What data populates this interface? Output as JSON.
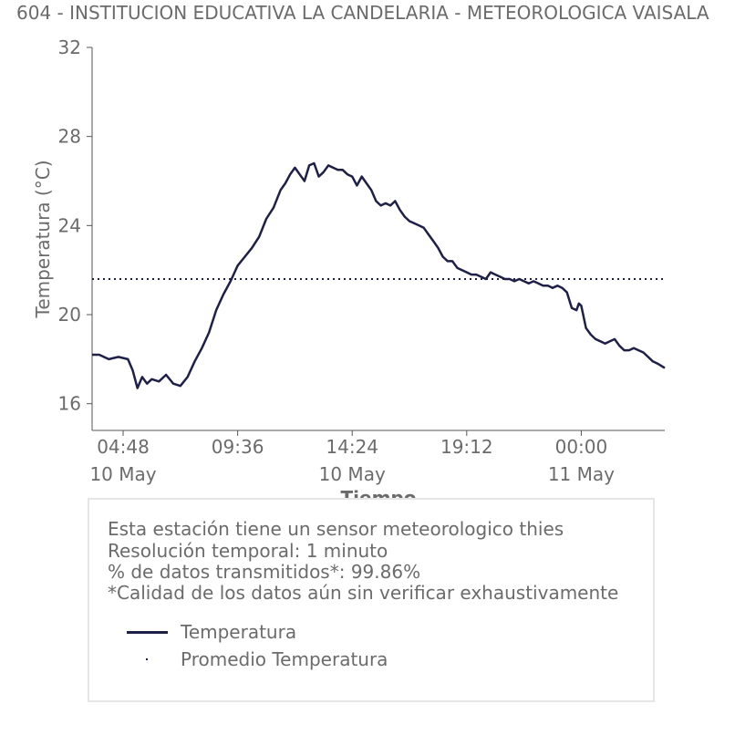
{
  "title": "604 - INSTITUCION EDUCATIVA LA CANDELARIA - METEOROLOGICA VAISALA",
  "info": {
    "line1": "Esta estación tiene un sensor meteorologico thies",
    "line2": "Resolución temporal: 1 minuto",
    "line3": "% de datos transmitidos*: 99.86%",
    "line4": "*Calidad de los datos aún sin verificar exhaustivamente"
  },
  "legend": {
    "series": "Temperatura",
    "mean": "Promedio Temperatura"
  },
  "colors": {
    "line": "#1f2045",
    "text": "#6b6b6b",
    "axis": "#555555"
  },
  "chart_data": {
    "type": "line",
    "title": "604 - INSTITUCION EDUCATIVA LA CANDELARIA - METEOROLOGICA VAISALA",
    "xlabel": "Tiempo",
    "ylabel": "Temperatura (°C)",
    "x_unit": "hours from 10 May 00:00",
    "xlim": [
      3.5,
      27.5
    ],
    "ylim": [
      14.8,
      32
    ],
    "yticks": [
      16,
      20,
      24,
      28,
      32
    ],
    "xticks": [
      {
        "value": 4.8,
        "time": "04:48",
        "date": "10 May"
      },
      {
        "value": 9.6,
        "time": "09:36",
        "date": ""
      },
      {
        "value": 14.4,
        "time": "14:24",
        "date": "10 May"
      },
      {
        "value": 19.2,
        "time": "19:12",
        "date": ""
      },
      {
        "value": 24.0,
        "time": "00:00",
        "date": "11 May"
      }
    ],
    "mean": 21.6,
    "grid": false,
    "series": [
      {
        "name": "Temperatura",
        "x": [
          3.5,
          3.8,
          4.2,
          4.6,
          5.0,
          5.2,
          5.4,
          5.6,
          5.8,
          6.0,
          6.3,
          6.6,
          6.9,
          7.2,
          7.5,
          7.8,
          8.1,
          8.4,
          8.7,
          9.0,
          9.3,
          9.6,
          9.9,
          10.2,
          10.5,
          10.8,
          11.1,
          11.4,
          11.6,
          11.8,
          12.0,
          12.2,
          12.4,
          12.6,
          12.8,
          13.0,
          13.2,
          13.4,
          13.6,
          13.8,
          14.0,
          14.2,
          14.4,
          14.6,
          14.8,
          15.0,
          15.2,
          15.4,
          15.6,
          15.8,
          16.0,
          16.2,
          16.4,
          16.6,
          16.8,
          17.0,
          17.2,
          17.4,
          17.6,
          17.8,
          18.0,
          18.2,
          18.4,
          18.6,
          18.8,
          19.0,
          19.2,
          19.4,
          19.6,
          19.8,
          20.0,
          20.2,
          20.4,
          20.6,
          20.8,
          21.0,
          21.2,
          21.4,
          21.6,
          21.8,
          22.0,
          22.2,
          22.4,
          22.6,
          22.8,
          23.0,
          23.2,
          23.4,
          23.6,
          23.8,
          23.9,
          24.0,
          24.2,
          24.4,
          24.6,
          24.8,
          25.0,
          25.2,
          25.4,
          25.6,
          25.8,
          26.0,
          26.2,
          26.4,
          26.6,
          26.8,
          27.0,
          27.2,
          27.5
        ],
        "y": [
          18.2,
          18.2,
          18.0,
          18.1,
          18.0,
          17.5,
          16.7,
          17.2,
          16.9,
          17.1,
          17.0,
          17.3,
          16.9,
          16.8,
          17.2,
          17.9,
          18.5,
          19.2,
          20.2,
          20.9,
          21.5,
          22.2,
          22.6,
          23.0,
          23.5,
          24.3,
          24.8,
          25.6,
          25.9,
          26.3,
          26.6,
          26.3,
          26.0,
          26.7,
          26.8,
          26.2,
          26.4,
          26.7,
          26.6,
          26.5,
          26.5,
          26.3,
          26.2,
          25.8,
          26.2,
          25.9,
          25.6,
          25.1,
          24.9,
          25.0,
          24.9,
          25.1,
          24.7,
          24.4,
          24.2,
          24.1,
          24.0,
          23.9,
          23.6,
          23.3,
          23.0,
          22.6,
          22.4,
          22.4,
          22.1,
          22.0,
          21.9,
          21.8,
          21.8,
          21.7,
          21.6,
          21.9,
          21.8,
          21.7,
          21.6,
          21.6,
          21.5,
          21.6,
          21.5,
          21.4,
          21.5,
          21.4,
          21.3,
          21.3,
          21.2,
          21.3,
          21.2,
          21.0,
          20.3,
          20.2,
          20.5,
          20.4,
          19.4,
          19.1,
          18.9,
          18.8,
          18.7,
          18.8,
          18.9,
          18.6,
          18.4,
          18.4,
          18.5,
          18.4,
          18.3,
          18.1,
          17.9,
          17.8,
          17.6
        ]
      }
    ]
  }
}
